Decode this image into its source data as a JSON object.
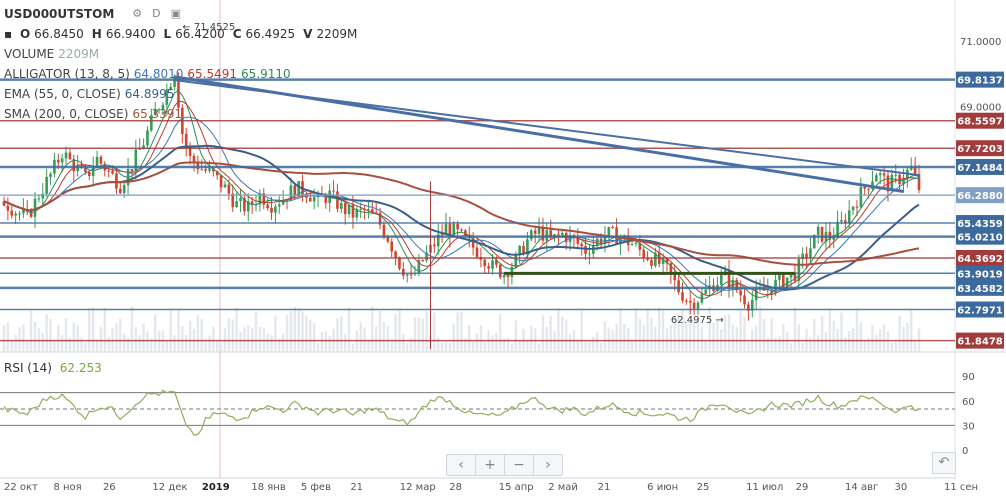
{
  "header": {
    "symbol": "USD000UTSTOM",
    "ohlc": [
      {
        "k": "O",
        "v": "66.8450"
      },
      {
        "k": "H",
        "v": "66.9400"
      },
      {
        "k": "L",
        "v": "66.4200"
      },
      {
        "k": "C",
        "v": "66.4925"
      },
      {
        "k": "V",
        "v": "2209M"
      }
    ],
    "icons": [
      "gear-icon",
      "d-icon",
      "save-icon"
    ]
  },
  "indicators": {
    "volume": {
      "label": "VOLUME",
      "value": "2209M"
    },
    "alligator": {
      "label": "ALLIGATOR (13, 8, 5)",
      "values": [
        "64.8010",
        "65.5491",
        "65.9110"
      ],
      "colors": [
        "#3a79b5",
        "#c0392b",
        "#2e8b57"
      ]
    },
    "ema": {
      "label": "EMA (55, 0, CLOSE)",
      "value": "64.8995",
      "color": "#3a5f8a"
    },
    "sma": {
      "label": "SMA (200, 0, CLOSE)",
      "value": "65.3391",
      "color": "#a85040"
    }
  },
  "rsi": {
    "label": "RSI (14)",
    "value": "62.253",
    "levels": [
      "90",
      "60",
      "30",
      "0"
    ]
  },
  "annotations": {
    "high_label": "71.4525",
    "low_label": "62.4975"
  },
  "price_axis": {
    "ticks": [
      "71.0000",
      "69.0000"
    ]
  },
  "price_badges": [
    {
      "text": "69.8137",
      "color": "#3d6a9c"
    },
    {
      "text": "68.5597",
      "color": "#a23b3b"
    },
    {
      "text": "67.7203",
      "color": "#a23b3b"
    },
    {
      "text": "67.1484",
      "color": "#3d6a9c"
    },
    {
      "text": "66.2880",
      "color": "#7f9fc4"
    },
    {
      "text": "65.4359",
      "color": "#3d6a9c"
    },
    {
      "text": "65.0210",
      "color": "#3d6a9c"
    },
    {
      "text": "64.3692",
      "color": "#a23b3b"
    },
    {
      "text": "63.9019",
      "color": "#3d6a9c"
    },
    {
      "text": "63.4582",
      "color": "#3d6a9c"
    },
    {
      "text": "62.7971",
      "color": "#3d6a9c"
    },
    {
      "text": "61.8478",
      "color": "#a23b3b"
    }
  ],
  "chart_data": {
    "type": "candlestick",
    "title": "USD000UTSTOM",
    "x_tick_labels": [
      "22 окт",
      "8 ноя",
      "26",
      "12 дек",
      "2019",
      "18 янв",
      "5 фев",
      "21",
      "12 мар",
      "28",
      "15 апр",
      "2 май",
      "21",
      "6 июн",
      "25",
      "11 июл",
      "29",
      "14 авг",
      "30",
      "11 сен"
    ],
    "y_range": [
      61.5,
      72.0
    ],
    "close_path": [
      [
        0,
        66.1
      ],
      [
        3,
        65.8
      ],
      [
        6,
        65.6
      ],
      [
        9,
        66.3
      ],
      [
        12,
        66.9
      ],
      [
        15,
        67.6
      ],
      [
        18,
        67.2
      ],
      [
        21,
        66.8
      ],
      [
        24,
        67.4
      ],
      [
        27,
        67.0
      ],
      [
        30,
        66.6
      ],
      [
        33,
        67.2
      ],
      [
        36,
        67.9
      ],
      [
        39,
        68.8
      ],
      [
        42,
        69.5
      ],
      [
        44,
        70.1
      ],
      [
        46,
        68.2
      ],
      [
        48,
        67.4
      ],
      [
        51,
        67.1
      ],
      [
        54,
        66.9
      ],
      [
        57,
        66.5
      ],
      [
        60,
        66.0
      ],
      [
        63,
        65.9
      ],
      [
        66,
        66.3
      ],
      [
        69,
        66.0
      ],
      [
        72,
        66.2
      ],
      [
        75,
        66.5
      ],
      [
        78,
        66.4
      ],
      [
        81,
        66.1
      ],
      [
        84,
        66.3
      ],
      [
        87,
        65.9
      ],
      [
        90,
        65.7
      ],
      [
        93,
        65.8
      ],
      [
        96,
        65.6
      ],
      [
        99,
        65.0
      ],
      [
        102,
        64.2
      ],
      [
        105,
        63.7
      ],
      [
        108,
        64.3
      ],
      [
        111,
        64.8
      ],
      [
        114,
        65.3
      ],
      [
        117,
        65.1
      ],
      [
        120,
        64.8
      ],
      [
        123,
        64.5
      ],
      [
        126,
        64.1
      ],
      [
        129,
        63.9
      ],
      [
        132,
        64.3
      ],
      [
        135,
        64.9
      ],
      [
        138,
        65.2
      ],
      [
        141,
        64.9
      ],
      [
        144,
        65.1
      ],
      [
        147,
        64.9
      ],
      [
        150,
        64.6
      ],
      [
        153,
        64.9
      ],
      [
        156,
        65.1
      ],
      [
        159,
        65.0
      ],
      [
        162,
        64.8
      ],
      [
        165,
        64.5
      ],
      [
        168,
        64.3
      ],
      [
        171,
        64.0
      ],
      [
        174,
        63.4
      ],
      [
        177,
        63.0
      ],
      [
        180,
        63.2
      ],
      [
        183,
        63.6
      ],
      [
        186,
        63.8
      ],
      [
        189,
        63.4
      ],
      [
        192,
        63.0
      ],
      [
        195,
        63.3
      ],
      [
        198,
        63.5
      ],
      [
        201,
        63.7
      ],
      [
        204,
        63.9
      ],
      [
        207,
        64.5
      ],
      [
        210,
        65.1
      ],
      [
        213,
        65.0
      ],
      [
        216,
        65.4
      ],
      [
        219,
        66.0
      ],
      [
        222,
        66.5
      ],
      [
        225,
        67.0
      ],
      [
        228,
        66.6
      ],
      [
        231,
        66.8
      ],
      [
        234,
        67.1
      ],
      [
        236,
        66.5
      ]
    ],
    "series": [
      {
        "name": "VOLUME",
        "value": "2209M"
      },
      {
        "name": "ALLIGATOR (13, 8, 5)",
        "values": [
          64.801,
          65.5491,
          65.911
        ]
      },
      {
        "name": "EMA (55, 0, CLOSE)",
        "value": 64.8995
      },
      {
        "name": "SMA (200, 0, CLOSE)",
        "value": 65.3391
      },
      {
        "name": "RSI (14)",
        "value": 62.253
      }
    ],
    "horizontal_levels": [
      69.8137,
      68.5597,
      67.7203,
      67.1484,
      66.288,
      65.4359,
      65.021,
      64.3692,
      63.9019,
      63.4582,
      62.7971,
      61.8478
    ],
    "annotations": [
      {
        "label": "71.4525"
      },
      {
        "label": "62.4975"
      }
    ],
    "rsi_levels": [
      90,
      60,
      30,
      0
    ],
    "grid": false
  }
}
